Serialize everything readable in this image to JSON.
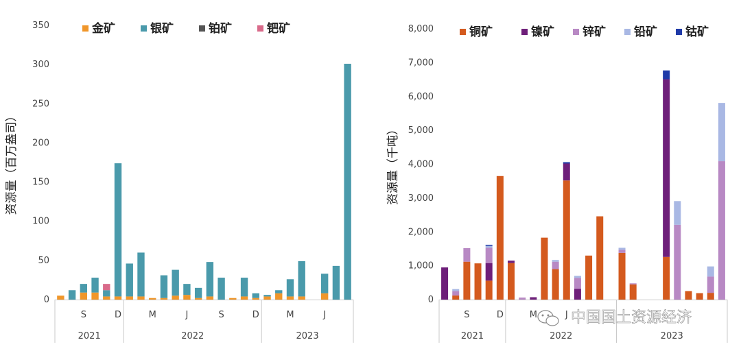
{
  "chart_data": [
    {
      "type": "bar",
      "stacked": true,
      "ylabel": "资源量（百万盎司）",
      "ylim": [
        0,
        350
      ],
      "yticks": [
        0,
        50,
        100,
        150,
        200,
        250,
        300,
        350
      ],
      "grid": false,
      "legend_position": "top",
      "x_tick_labels": [
        {
          "label": "S",
          "index": 2
        },
        {
          "label": "D",
          "index": 5
        },
        {
          "label": "M",
          "index": 8
        },
        {
          "label": "J",
          "index": 11
        },
        {
          "label": "S",
          "index": 14
        },
        {
          "label": "D",
          "index": 17
        },
        {
          "label": "M",
          "index": 20
        },
        {
          "label": "J",
          "index": 23
        }
      ],
      "years": [
        {
          "label": "2021",
          "start": 0,
          "end": 6
        },
        {
          "label": "2022",
          "start": 6,
          "end": 18
        },
        {
          "label": "2023",
          "start": 18,
          "end": 26
        }
      ],
      "series": [
        {
          "name": "金矿",
          "color": "#f0962a",
          "values": [
            5,
            0,
            9,
            9,
            4,
            4,
            4,
            4,
            2,
            2,
            5,
            6,
            2,
            4,
            0,
            2,
            4,
            2,
            4,
            8,
            4,
            4,
            0,
            8,
            0,
            0
          ]
        },
        {
          "name": "银矿",
          "color": "#4a9aab",
          "values": [
            0,
            12,
            11,
            19,
            8,
            170,
            42,
            56,
            0,
            29,
            33,
            14,
            13,
            44,
            28,
            0,
            24,
            6,
            2,
            4,
            22,
            45,
            0,
            25,
            43,
            301
          ]
        },
        {
          "name": "铂矿",
          "color": "#555555",
          "values": [
            0,
            0,
            0,
            0,
            0,
            0,
            0,
            0,
            0,
            0,
            0,
            0,
            0,
            0,
            0,
            0,
            0,
            0,
            0,
            0,
            0,
            0,
            0,
            0,
            0,
            0
          ]
        },
        {
          "name": "钯矿",
          "color": "#d96a8a",
          "values": [
            0,
            0,
            0,
            0,
            8,
            0,
            0,
            0,
            0,
            0,
            0,
            0,
            0,
            0,
            0,
            0,
            0,
            0,
            0,
            0,
            0,
            0,
            0,
            0,
            0,
            0
          ]
        }
      ]
    },
    {
      "type": "bar",
      "stacked": true,
      "ylabel": "资源量（千吨）",
      "ylim": [
        0,
        8000
      ],
      "yticks": [
        "0",
        "1,000",
        "2,000",
        "3,000",
        "4,000",
        "5,000",
        "6,000",
        "7,000",
        "8,000"
      ],
      "grid": false,
      "legend_position": "top",
      "x_tick_labels": [
        {
          "label": "S",
          "index": 2
        },
        {
          "label": "D",
          "index": 5
        },
        {
          "label": "M",
          "index": 8
        },
        {
          "label": "J",
          "index": 11
        }
      ],
      "years": [
        {
          "label": "2021",
          "start": 0,
          "end": 6
        },
        {
          "label": "2022",
          "start": 6,
          "end": 16
        },
        {
          "label": "2023",
          "start": 16,
          "end": 26
        }
      ],
      "series": [
        {
          "name": "铜矿",
          "color": "#d45a1e",
          "values": [
            0,
            120,
            1120,
            1070,
            560,
            3650,
            1080,
            0,
            0,
            1830,
            900,
            3520,
            0,
            1300,
            2460,
            0,
            1380,
            450,
            0,
            0,
            1260,
            0,
            250,
            190,
            200,
            0
          ]
        },
        {
          "name": "镍矿",
          "color": "#6e1f7a",
          "values": [
            950,
            0,
            0,
            0,
            520,
            0,
            70,
            0,
            70,
            0,
            0,
            500,
            320,
            0,
            0,
            0,
            0,
            0,
            0,
            0,
            5250,
            0,
            0,
            0,
            0,
            0
          ]
        },
        {
          "name": "锌矿",
          "color": "#b889c4",
          "values": [
            0,
            130,
            400,
            0,
            450,
            0,
            0,
            60,
            0,
            0,
            220,
            0,
            320,
            0,
            0,
            0,
            90,
            30,
            0,
            0,
            0,
            2210,
            0,
            0,
            480,
            4090
          ]
        },
        {
          "name": "铅矿",
          "color": "#a9b8e4",
          "values": [
            0,
            60,
            0,
            0,
            60,
            0,
            0,
            0,
            0,
            0,
            50,
            0,
            60,
            0,
            0,
            0,
            60,
            0,
            0,
            0,
            0,
            700,
            0,
            0,
            300,
            1720
          ]
        },
        {
          "name": "钴矿",
          "color": "#1f3aa8",
          "values": [
            0,
            0,
            0,
            0,
            30,
            0,
            0,
            0,
            0,
            0,
            0,
            40,
            0,
            0,
            0,
            0,
            0,
            0,
            0,
            0,
            260,
            0,
            0,
            0,
            0,
            0
          ]
        }
      ]
    }
  ],
  "watermark": "中国国土资源经济"
}
